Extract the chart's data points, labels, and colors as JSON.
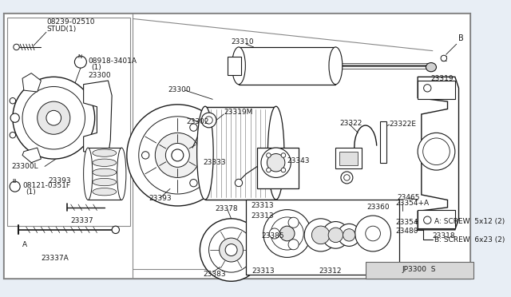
{
  "bg_color": "#e8eef5",
  "white": "#ffffff",
  "black": "#1a1a1a",
  "gray_light": "#d8d8d8",
  "gray_med": "#aaaaaa",
  "diagram_ref": "JP3300  S",
  "title_parts": {
    "stud": "08239-02510\nSTUD(1)",
    "nut": "N 08918-3401A\n(1)",
    "p23300": "23300",
    "p23300L": "23300L",
    "bolt_B": "B 08121-0351F\n(1)",
    "p23337A": "23337A",
    "A_label": "A",
    "p23337": "23337",
    "p23393": "23393",
    "p23333": "23333",
    "p23378": "23378",
    "p23385": "23385",
    "p23383": "23383",
    "p23300_main": "23300",
    "p23302": "23302",
    "p23319M": "23319M",
    "p23310": "23310",
    "p23343": "23343",
    "p23322": "23322",
    "p23322E": "23322E",
    "B_top": "B",
    "p23319": "23319",
    "p23318": "23318",
    "p23465": "23465",
    "p23354A": "23354+A",
    "p23354": "23354",
    "p23480": "23480",
    "p23360": "23360",
    "p23312": "23312",
    "p23313_a": "23313",
    "p23313_b": "23313",
    "p23313_c": "23313",
    "screw_A": "A: SCREW  5x12 (2)",
    "screw_B": "B: SCREW  6x23 (2)"
  },
  "figsize": [
    6.4,
    3.72
  ],
  "dpi": 100
}
